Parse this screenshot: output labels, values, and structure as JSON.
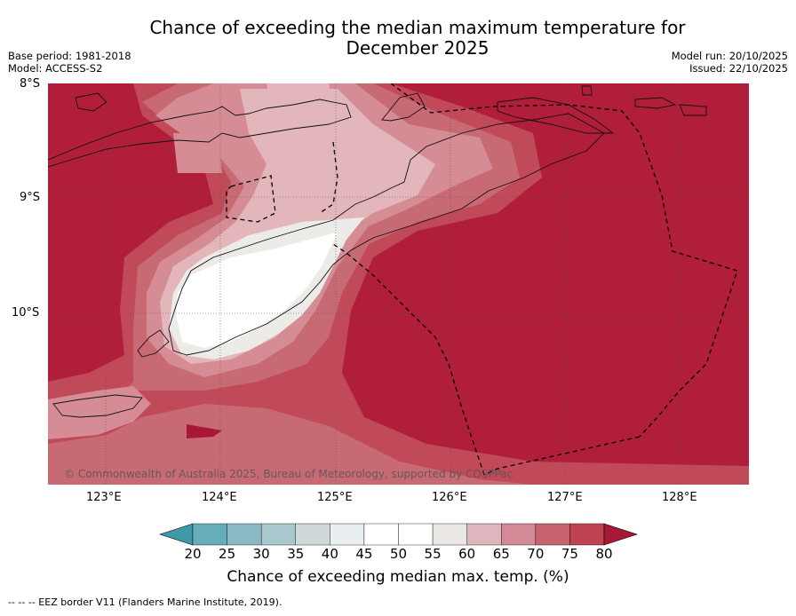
{
  "title": {
    "line1": "Chance of exceeding the median maximum temperature for",
    "line2": "December 2025"
  },
  "meta": {
    "base_period": "Base period: 1981-2018",
    "model": "Model: ACCESS-S2",
    "model_run": "Model run: 20/10/2025",
    "issued": "Issued: 22/10/2025"
  },
  "map": {
    "lat_labels": [
      "8°S",
      "9°S",
      "10°S"
    ],
    "lon_labels": [
      "123°E",
      "124°E",
      "125°E",
      "126°E",
      "127°E",
      "128°E"
    ],
    "copyright": "© Commonwealth of Australia 2025, Bureau of Meteorology, supported by COSPPac",
    "region": "Timor-Leste and surrounding waters"
  },
  "colorbar": {
    "ticks": [
      "20",
      "25",
      "30",
      "35",
      "40",
      "45",
      "50",
      "55",
      "60",
      "65",
      "70",
      "75",
      "80"
    ],
    "colors": [
      "#3e9aa8",
      "#66adbb",
      "#8ab9c4",
      "#a8c8cd",
      "#cfd8da",
      "#e9eef0",
      "#ffffff",
      "#ffffff",
      "#ebe9e6",
      "#e0b6be",
      "#d48a96",
      "#c7636f",
      "#bd4352",
      "#a71a35"
    ],
    "label": "Chance of exceeding median max. temp. (%)"
  },
  "footer": "--  --  -- EEZ border V11 (Flanders Marine Institute, 2019)."
}
